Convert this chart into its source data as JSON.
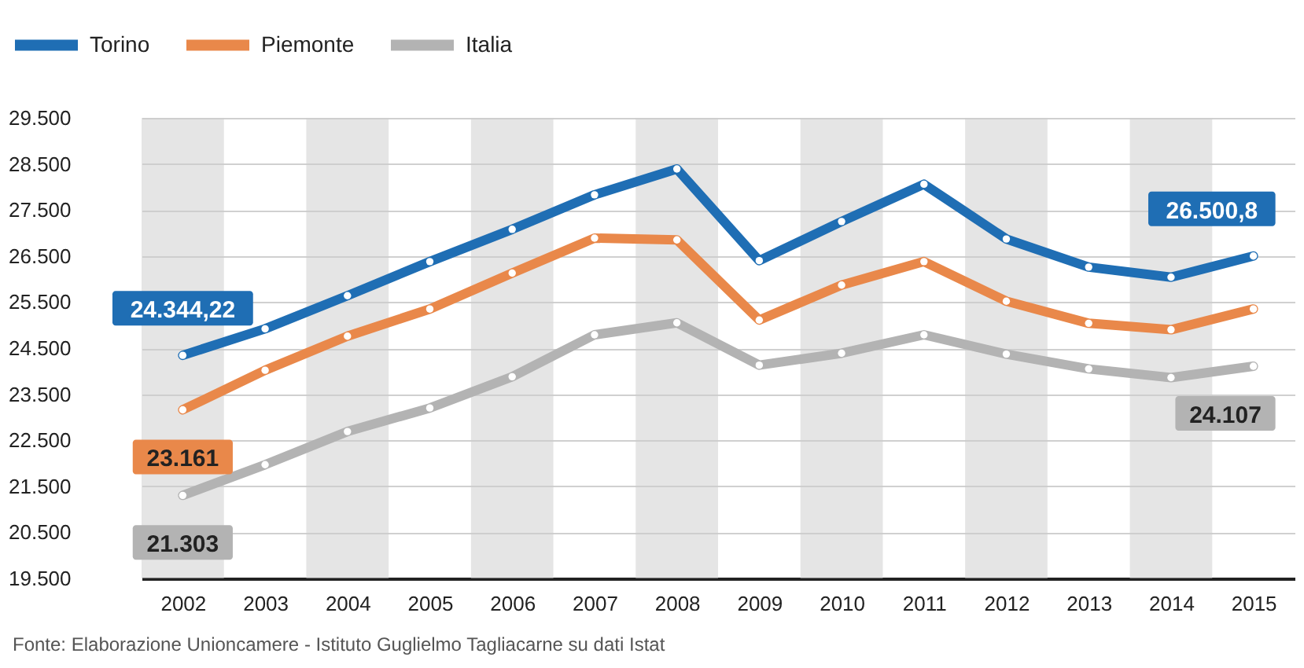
{
  "chart_data": {
    "type": "line",
    "x": [
      2002,
      2003,
      2004,
      2005,
      2006,
      2007,
      2008,
      2009,
      2010,
      2011,
      2012,
      2013,
      2014,
      2015
    ],
    "series": [
      {
        "name": "Torino",
        "color": "#1f6eb4",
        "values": [
          24344.22,
          24920,
          25640,
          26380,
          27080,
          27830,
          28390,
          26400,
          27250,
          28060,
          26870,
          26260,
          26040,
          26500.8
        ],
        "value_labels": [
          "24.344,22",
          null,
          null,
          null,
          null,
          null,
          null,
          null,
          null,
          null,
          null,
          null,
          null,
          "26.500,8"
        ]
      },
      {
        "name": "Piemonte",
        "color": "#e9884a",
        "values": [
          23161,
          24020,
          24760,
          25350,
          26130,
          26890,
          26850,
          25110,
          25870,
          26380,
          25520,
          25040,
          24900,
          25350
        ],
        "value_labels": [
          "23.161",
          null,
          null,
          null,
          null,
          null,
          null,
          null,
          null,
          null,
          null,
          null,
          null,
          null
        ]
      },
      {
        "name": "Italia",
        "color": "#b3b3b3",
        "values": [
          21303,
          21970,
          22690,
          23200,
          23880,
          24790,
          25050,
          24130,
          24390,
          24790,
          24370,
          24050,
          23860,
          24107
        ],
        "value_labels": [
          "21.303",
          null,
          null,
          null,
          null,
          null,
          null,
          null,
          null,
          null,
          null,
          null,
          null,
          "24.107"
        ]
      }
    ],
    "xlim": [
      2001.5,
      2015.5
    ],
    "xticks": [
      2002,
      2003,
      2004,
      2005,
      2006,
      2007,
      2008,
      2009,
      2010,
      2011,
      2012,
      2013,
      2014,
      2015
    ],
    "ylim": [
      19500,
      29500
    ],
    "yticks": [
      {
        "value": 19500,
        "label": "19.500"
      },
      {
        "value": 20500,
        "label": "20.500"
      },
      {
        "value": 21500,
        "label": "21.500"
      },
      {
        "value": 22500,
        "label": "22.500"
      },
      {
        "value": 23500,
        "label": "23.500"
      },
      {
        "value": 24500,
        "label": "24.500"
      },
      {
        "value": 25500,
        "label": "25.500"
      },
      {
        "value": 26500,
        "label": "26.500"
      },
      {
        "value": 27500,
        "label": "27.500"
      },
      {
        "value": 28500,
        "label": "28.500"
      },
      {
        "value": 29500,
        "label": "29.500"
      }
    ],
    "grid": "y",
    "legend": "top left",
    "marker": "circle",
    "line_style": "solid",
    "bands": [
      {
        "axis": "x",
        "from": 2001.5,
        "to": 2002.5,
        "color": "#cccccc"
      },
      {
        "axis": "x",
        "from": 2003.5,
        "to": 2004.5,
        "color": "#cccccc"
      },
      {
        "axis": "x",
        "from": 2005.5,
        "to": 2006.5,
        "color": "#cccccc"
      },
      {
        "axis": "x",
        "from": 2007.5,
        "to": 2008.5,
        "color": "#cccccc"
      },
      {
        "axis": "x",
        "from": 2009.5,
        "to": 2010.5,
        "color": "#cccccc"
      },
      {
        "axis": "x",
        "from": 2011.5,
        "to": 2012.5,
        "color": "#cccccc"
      },
      {
        "axis": "x",
        "from": 2013.5,
        "to": 2014.5,
        "color": "#cccccc"
      }
    ],
    "annotations": [
      "Fonte: Elaborazione Unioncamere - Istituto Guglielmo Tagliacarne su dati Istat"
    ]
  }
}
